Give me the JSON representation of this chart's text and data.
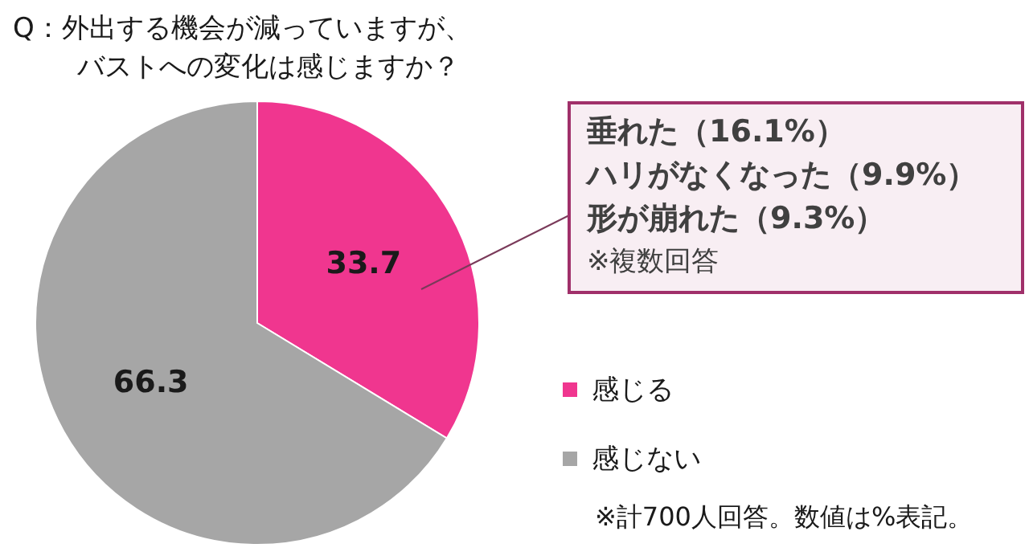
{
  "chart_data": {
    "type": "pie",
    "title": "Q：外出する機会が減っていますが、バストへの変化は感じますか？",
    "categories": [
      "感じる",
      "感じない"
    ],
    "values": [
      33.7,
      66.3
    ],
    "colors": [
      "#f0368f",
      "#a6a6a6"
    ],
    "data_labels": true,
    "legend": "right",
    "annotations": [
      "垂れた（16.1%）",
      "ハリがなくなった（9.9%）",
      "形が崩れた（9.3%）",
      "※複数回答",
      "※計700人回答。数値は%表記。"
    ]
  }
}
